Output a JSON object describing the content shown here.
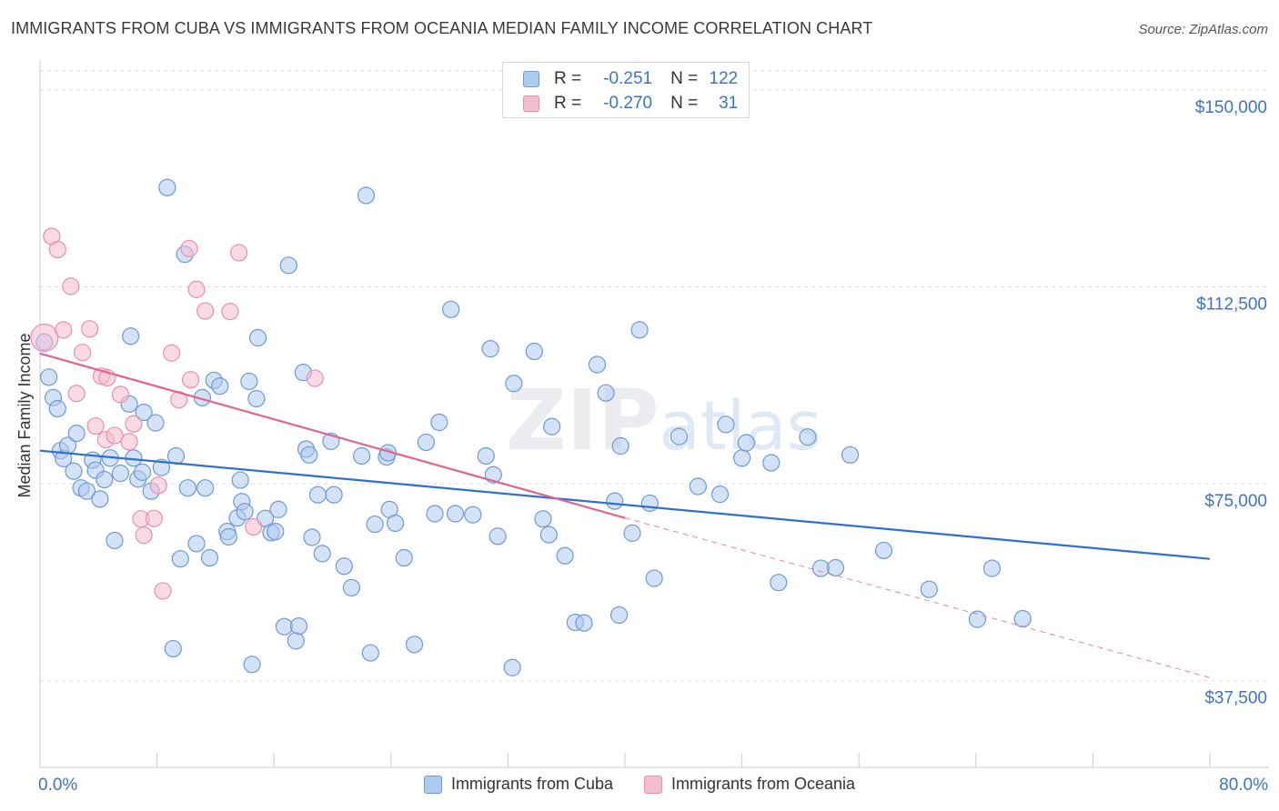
{
  "title": "IMMIGRANTS FROM CUBA VS IMMIGRANTS FROM OCEANIA MEDIAN FAMILY INCOME CORRELATION CHART",
  "source": "Source: ZipAtlas.com",
  "colors": {
    "blue_fill": "#aecbf0",
    "blue_stroke": "#6d9ad6",
    "blue_line": "#2f6fcf",
    "pink_fill": "#f5bccf",
    "pink_stroke": "#e98fae",
    "pink_line": "#e0648f",
    "axis_label": "#3d74c6",
    "grid": "#dddddd"
  },
  "stats": {
    "r_label": "R =",
    "n_label": "N =",
    "cuba": {
      "r": "-0.251",
      "n": "122"
    },
    "oceania": {
      "r": "-0.270",
      "n": "31"
    }
  },
  "legend": {
    "cuba": "Immigrants from Cuba",
    "oceania": "Immigrants from Oceania"
  },
  "watermark": {
    "zip": "ZIP",
    "atlas": "atlas"
  },
  "chart_data": {
    "type": "scatter",
    "title": "IMMIGRANTS FROM CUBA VS IMMIGRANTS FROM OCEANIA MEDIAN FAMILY INCOME CORRELATION CHART",
    "xlabel": "",
    "ylabel": "Median Family Income",
    "xlim": [
      0,
      80
    ],
    "ylim": [
      21000,
      155000
    ],
    "x_tick_labels": [
      "0.0%",
      "80.0%"
    ],
    "y_ticks": [
      37500,
      75000,
      112500,
      150000
    ],
    "y_tick_labels": [
      "$37,500",
      "$75,000",
      "$112,500",
      "$150,000"
    ],
    "grid": true,
    "legend_position": "bottom",
    "series": [
      {
        "name": "Immigrants from Cuba",
        "trend": {
          "x": [
            0,
            80
          ],
          "y": [
            81300,
            60700
          ]
        },
        "points": [
          [
            0.3,
            102000
          ],
          [
            0.6,
            95300
          ],
          [
            0.9,
            91400
          ],
          [
            1.2,
            89300
          ],
          [
            1.4,
            81300
          ],
          [
            1.6,
            79800
          ],
          [
            1.9,
            82300
          ],
          [
            2.3,
            77400
          ],
          [
            2.5,
            84600
          ],
          [
            2.8,
            74200
          ],
          [
            3.2,
            73600
          ],
          [
            3.6,
            79500
          ],
          [
            3.8,
            77600
          ],
          [
            4.1,
            72100
          ],
          [
            4.4,
            75800
          ],
          [
            4.8,
            79900
          ],
          [
            5.1,
            64200
          ],
          [
            5.5,
            77000
          ],
          [
            6.1,
            90200
          ],
          [
            6.2,
            103100
          ],
          [
            6.4,
            79900
          ],
          [
            6.7,
            75900
          ],
          [
            7.0,
            77200
          ],
          [
            7.1,
            88600
          ],
          [
            7.6,
            73600
          ],
          [
            7.9,
            86600
          ],
          [
            8.3,
            78100
          ],
          [
            8.7,
            131400
          ],
          [
            9.1,
            43600
          ],
          [
            9.3,
            80300
          ],
          [
            9.6,
            60700
          ],
          [
            9.9,
            118700
          ],
          [
            10.1,
            74200
          ],
          [
            10.7,
            63600
          ],
          [
            11.1,
            91400
          ],
          [
            11.3,
            74200
          ],
          [
            11.6,
            60900
          ],
          [
            11.9,
            94700
          ],
          [
            12.3,
            93600
          ],
          [
            12.8,
            65900
          ],
          [
            12.9,
            64900
          ],
          [
            13.5,
            68500
          ],
          [
            13.7,
            75700
          ],
          [
            13.8,
            71600
          ],
          [
            14.0,
            69700
          ],
          [
            14.3,
            94500
          ],
          [
            14.5,
            40600
          ],
          [
            14.8,
            91200
          ],
          [
            14.9,
            102800
          ],
          [
            15.4,
            68400
          ],
          [
            15.8,
            65700
          ],
          [
            16.1,
            65900
          ],
          [
            16.3,
            70100
          ],
          [
            16.7,
            47800
          ],
          [
            17.0,
            116600
          ],
          [
            17.5,
            45100
          ],
          [
            17.7,
            47900
          ],
          [
            18.0,
            96200
          ],
          [
            18.2,
            81600
          ],
          [
            18.4,
            80500
          ],
          [
            18.6,
            64800
          ],
          [
            19.0,
            72900
          ],
          [
            19.3,
            61700
          ],
          [
            19.9,
            83100
          ],
          [
            20.1,
            72900
          ],
          [
            20.8,
            59300
          ],
          [
            21.3,
            55200
          ],
          [
            22.0,
            80300
          ],
          [
            22.3,
            129900
          ],
          [
            22.6,
            42800
          ],
          [
            22.9,
            67300
          ],
          [
            23.7,
            80100
          ],
          [
            23.8,
            80900
          ],
          [
            23.9,
            70100
          ],
          [
            24.3,
            67500
          ],
          [
            24.9,
            60900
          ],
          [
            25.6,
            44400
          ],
          [
            26.4,
            82900
          ],
          [
            27.0,
            69300
          ],
          [
            27.3,
            86700
          ],
          [
            28.1,
            108200
          ],
          [
            28.4,
            69300
          ],
          [
            29.6,
            69100
          ],
          [
            30.5,
            80300
          ],
          [
            30.8,
            100700
          ],
          [
            31.0,
            76700
          ],
          [
            31.3,
            65000
          ],
          [
            32.3,
            40000
          ],
          [
            32.4,
            94100
          ],
          [
            33.8,
            100200
          ],
          [
            34.4,
            68300
          ],
          [
            34.8,
            65300
          ],
          [
            35.0,
            85900
          ],
          [
            35.9,
            61300
          ],
          [
            36.6,
            48600
          ],
          [
            37.2,
            48500
          ],
          [
            38.1,
            97700
          ],
          [
            38.7,
            92300
          ],
          [
            39.3,
            71700
          ],
          [
            39.6,
            50000
          ],
          [
            39.7,
            82200
          ],
          [
            40.5,
            65600
          ],
          [
            41.0,
            104300
          ],
          [
            41.7,
            71300
          ],
          [
            42.0,
            57000
          ],
          [
            43.7,
            84000
          ],
          [
            45.0,
            74500
          ],
          [
            46.5,
            73000
          ],
          [
            46.9,
            86300
          ],
          [
            48.0,
            79900
          ],
          [
            48.3,
            82800
          ],
          [
            50.0,
            79000
          ],
          [
            50.5,
            56200
          ],
          [
            52.5,
            83900
          ],
          [
            53.4,
            58900
          ],
          [
            54.4,
            59000
          ],
          [
            55.4,
            80500
          ],
          [
            57.7,
            62300
          ],
          [
            60.8,
            54900
          ],
          [
            64.1,
            49200
          ],
          [
            65.1,
            58900
          ],
          [
            67.2,
            49300
          ]
        ]
      },
      {
        "name": "Immigrants from Oceania",
        "trend": {
          "x": [
            0,
            40
          ],
          "y": [
            99800,
            68500
          ]
        },
        "trend_extension": {
          "x": [
            40,
            80
          ],
          "y": [
            68500,
            38100
          ]
        },
        "points": [
          [
            0.3,
            102800
          ],
          [
            0.8,
            122100
          ],
          [
            1.2,
            119600
          ],
          [
            1.6,
            104300
          ],
          [
            2.1,
            112600
          ],
          [
            2.5,
            92200
          ],
          [
            2.9,
            100000
          ],
          [
            3.4,
            104500
          ],
          [
            3.8,
            86000
          ],
          [
            4.2,
            95500
          ],
          [
            4.5,
            83400
          ],
          [
            4.6,
            95200
          ],
          [
            5.1,
            84200
          ],
          [
            5.5,
            92000
          ],
          [
            6.1,
            83000
          ],
          [
            6.4,
            86400
          ],
          [
            6.9,
            68300
          ],
          [
            7.1,
            65200
          ],
          [
            7.8,
            68400
          ],
          [
            8.1,
            74700
          ],
          [
            8.4,
            54600
          ],
          [
            9.0,
            99900
          ],
          [
            9.5,
            91000
          ],
          [
            10.2,
            119800
          ],
          [
            10.3,
            94800
          ],
          [
            10.7,
            112000
          ],
          [
            11.3,
            107900
          ],
          [
            13.0,
            107800
          ],
          [
            13.6,
            119000
          ],
          [
            14.6,
            66800
          ],
          [
            18.8,
            95100
          ]
        ]
      }
    ]
  }
}
